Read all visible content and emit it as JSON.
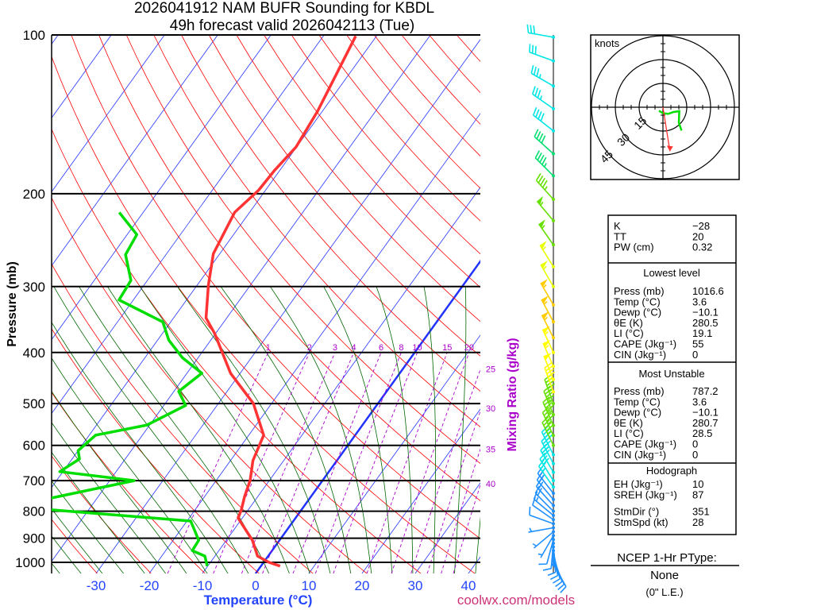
{
  "chart_data": {
    "type": "skew-t",
    "title": [
      "2026041912 NAM BUFR Sounding for KBDL",
      "49h forecast valid 2026042113 (Tue)"
    ],
    "ylabel": "Pressure (mb)",
    "xlabel": "Temperature (°C)",
    "mixing_label": "Mixing Ratio (g/kg)",
    "credit": "coolwx.com/models",
    "pressure_ticks": [
      100,
      200,
      300,
      400,
      500,
      600,
      700,
      800,
      900,
      1000
    ],
    "temp_ticks": [
      -30,
      -20,
      -10,
      0,
      10,
      20,
      30,
      40
    ],
    "mixing_ratios": [
      1,
      2,
      3,
      4,
      6,
      8,
      10,
      15,
      20,
      25,
      30,
      35,
      40
    ],
    "ylim_mb": [
      1050,
      100
    ],
    "temperature": [
      [
        1016.6,
        3.6
      ],
      [
        1000,
        1.0
      ],
      [
        973,
        -2.0
      ],
      [
        908,
        -5.1
      ],
      [
        824,
        -10.8
      ],
      [
        795,
        -11.3
      ],
      [
        750,
        -12.5
      ],
      [
        700,
        -13.6
      ],
      [
        641,
        -15.8
      ],
      [
        574,
        -17.2
      ],
      [
        500,
        -23.4
      ],
      [
        438,
        -31.8
      ],
      [
        368,
        -40.2
      ],
      [
        344,
        -43.9
      ],
      [
        298,
        -47.9
      ],
      [
        260,
        -51.2
      ],
      [
        217,
        -52.8
      ],
      [
        197,
        -51.3
      ],
      [
        181,
        -51.0
      ],
      [
        163,
        -50.1
      ],
      [
        139.5,
        -50.9
      ],
      [
        100.5,
        -53.9
      ]
    ],
    "dewpoint": [
      [
        1016.6,
        -10.1
      ],
      [
        973,
        -11.9
      ],
      [
        950,
        -15.0
      ],
      [
        908,
        -15.2
      ],
      [
        835,
        -19.3
      ],
      [
        795,
        -47.2
      ],
      [
        770,
        -52
      ],
      [
        700,
        -35.4
      ],
      [
        673,
        -50.6
      ],
      [
        637,
        -48.6
      ],
      [
        614,
        -50.0
      ],
      [
        574,
        -48.8
      ],
      [
        549,
        -40.5
      ],
      [
        504,
        -35.9
      ],
      [
        474,
        -39.1
      ],
      [
        438,
        -37.2
      ],
      [
        409,
        -43.0
      ],
      [
        379,
        -47.9
      ],
      [
        350,
        -51.5
      ],
      [
        318,
        -62.7
      ],
      [
        292,
        -63.1
      ],
      [
        261,
        -67.6
      ],
      [
        239,
        -68.2
      ],
      [
        217,
        -74.5
      ]
    ],
    "winds": [
      [
        1010,
        150,
        8
      ],
      [
        995,
        155,
        9
      ],
      [
        980,
        160,
        9
      ],
      [
        965,
        165,
        10
      ],
      [
        950,
        170,
        10
      ],
      [
        935,
        175,
        10
      ],
      [
        920,
        185,
        9
      ],
      [
        905,
        195,
        8
      ],
      [
        890,
        210,
        7
      ],
      [
        875,
        230,
        6
      ],
      [
        860,
        260,
        6
      ],
      [
        845,
        290,
        8
      ],
      [
        830,
        305,
        12
      ],
      [
        815,
        310,
        16
      ],
      [
        800,
        315,
        20
      ],
      [
        780,
        318,
        22
      ],
      [
        760,
        320,
        22
      ],
      [
        740,
        322,
        24
      ],
      [
        720,
        325,
        25
      ],
      [
        700,
        328,
        28
      ],
      [
        675,
        330,
        30
      ],
      [
        650,
        332,
        35
      ],
      [
        625,
        333,
        40
      ],
      [
        600,
        334,
        45
      ],
      [
        575,
        335,
        45
      ],
      [
        550,
        336,
        45
      ],
      [
        525,
        338,
        45
      ],
      [
        500,
        340,
        45
      ],
      [
        475,
        340,
        45
      ],
      [
        450,
        338,
        48
      ],
      [
        425,
        336,
        55
      ],
      [
        400,
        335,
        55
      ],
      [
        375,
        333,
        55
      ],
      [
        350,
        332,
        55
      ],
      [
        325,
        330,
        55
      ],
      [
        300,
        330,
        55
      ],
      [
        275,
        328,
        55
      ],
      [
        250,
        325,
        55
      ],
      [
        225,
        320,
        55
      ],
      [
        205,
        318,
        45
      ],
      [
        185,
        315,
        45
      ],
      [
        168,
        312,
        40
      ],
      [
        152,
        308,
        40
      ],
      [
        138,
        305,
        35
      ],
      [
        125,
        300,
        35
      ],
      [
        112,
        290,
        30
      ],
      [
        101,
        280,
        30
      ]
    ],
    "hodograph": {
      "units": "knots",
      "rings": [
        15,
        30,
        45
      ],
      "trace_uv": [
        [
          -2.5,
          -2.2
        ],
        [
          0,
          -3.8
        ],
        [
          3.3,
          -4.2
        ],
        [
          6.7,
          -3.0
        ],
        [
          10.3,
          -2.5
        ],
        [
          10,
          -9.7
        ],
        [
          11.7,
          -14.7
        ]
      ],
      "storm_motion_uv": [
        4.4,
        -27.7
      ]
    }
  },
  "table": {
    "top": [
      [
        "K",
        "−28"
      ],
      [
        "TT",
        "20"
      ],
      [
        "PW (cm)",
        "0.32"
      ]
    ],
    "lowest_title": "Lowest level",
    "lowest": [
      [
        "Press (mb)",
        "1016.6"
      ],
      [
        "Temp (°C)",
        "3.6"
      ],
      [
        "Dewp (°C)",
        "−10.1"
      ],
      [
        "θE (K)",
        "280.5"
      ],
      [
        "LI (°C)",
        "19.1"
      ],
      [
        "CAPE (Jkg⁻¹)",
        "55"
      ],
      [
        "CIN (Jkg⁻¹)",
        "0"
      ]
    ],
    "mu_title": "Most Unstable",
    "mu": [
      [
        "Press (mb)",
        "787.2"
      ],
      [
        "Temp (°C)",
        "3.6"
      ],
      [
        "Dewp (°C)",
        "−10.1"
      ],
      [
        "θE (K)",
        "280.7"
      ],
      [
        "LI (°C)",
        "28.5"
      ],
      [
        "CAPE (Jkg⁻¹)",
        "0"
      ],
      [
        "CIN (Jkg⁻¹)",
        "0"
      ]
    ],
    "hodo_title": "Hodograph",
    "hodo": [
      [
        "EH (Jkg⁻¹)",
        "10"
      ],
      [
        "SREH (Jkg⁻¹)",
        "87"
      ],
      [
        "StmDir (°)",
        "351"
      ],
      [
        "StmSpd (kt)",
        "28"
      ]
    ]
  },
  "ptype": {
    "title": "NCEP 1-Hr PType:",
    "value": "None",
    "le": "(0\" L.E.)"
  },
  "colors": {
    "temp": "#ff3333",
    "dew": "#00dd00",
    "isotherm": "#2233ff",
    "adiabat": "#ff0000",
    "moist": "#006600",
    "mix": "#aa00cc",
    "credit": "#cc3377"
  }
}
